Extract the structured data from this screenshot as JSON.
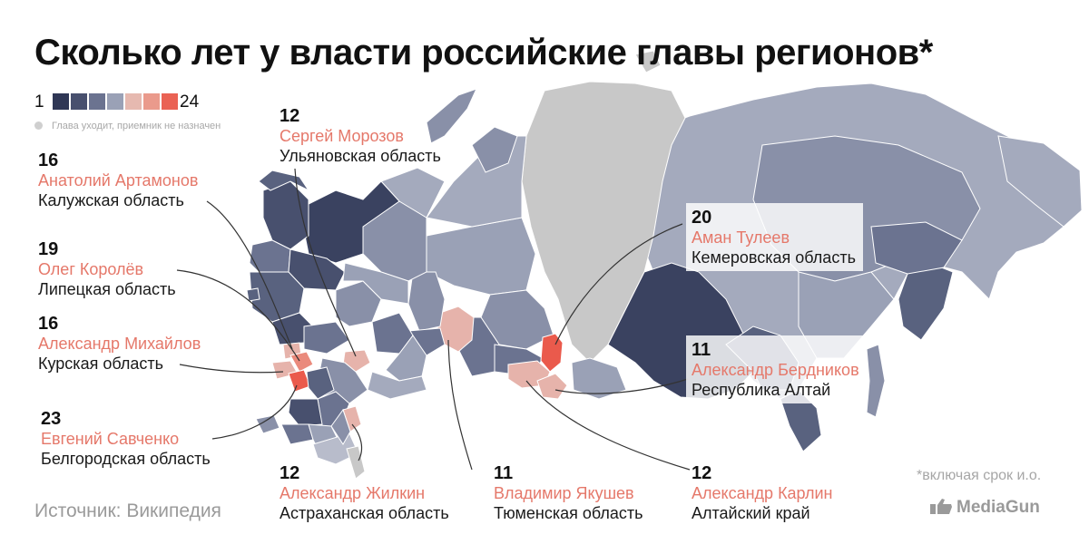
{
  "title": "Сколько лет у власти российские главы регионов*",
  "legend": {
    "min": "1",
    "max": "24",
    "colors": [
      "#2f3755",
      "#48506e",
      "#6b7390",
      "#9aa1b6",
      "#e6b9b0",
      "#ea9a8c",
      "#ea6254"
    ],
    "note": "Глава уходит, приемник не назначен",
    "note_color": "#cfcfcf"
  },
  "map_colors": {
    "very_dark": "#3a4260",
    "dark": "#59627f",
    "mid": "#8990a8",
    "light": "#a4aabd",
    "pale": "#b8bccb",
    "grey_vacant": "#c8c8c8",
    "pink": "#e6b3ab",
    "salmon": "#ea8a7c",
    "red": "#ea5a4c"
  },
  "labels": [
    {
      "id": "ulyanovsk",
      "years": "12",
      "name": "Сергей Морозов",
      "region": "Ульяновская область"
    },
    {
      "id": "kaluga",
      "years": "16",
      "name": "Анатолий Артамонов",
      "region": "Калужская область"
    },
    {
      "id": "lipetsk",
      "years": "19",
      "name": "Олег Королёв",
      "region": "Липецкая область"
    },
    {
      "id": "kursk",
      "years": "16",
      "name": "Александр Михайлов",
      "region": "Курская область"
    },
    {
      "id": "belgorod",
      "years": "23",
      "name": "Евгений Савченко",
      "region": "Белгородская область"
    },
    {
      "id": "astrakhan",
      "years": "12",
      "name": "Александр Жилкин",
      "region": "Астраханская область"
    },
    {
      "id": "tyumen",
      "years": "11",
      "name": "Владимир Якушев",
      "region": "Тюменская область"
    },
    {
      "id": "altai_krai",
      "years": "12",
      "name": "Александр Карлин",
      "region": "Алтайский край"
    },
    {
      "id": "kemerovo",
      "years": "20",
      "name": "Аман Тулеев",
      "region": "Кемеровская область"
    },
    {
      "id": "altai_rep",
      "years": "11",
      "name": "Александр Бердников",
      "region": "Республика Алтай"
    }
  ],
  "source": "Источник: Википедия",
  "footnote": "*включая срок и.о.",
  "brand": "MediaGun"
}
